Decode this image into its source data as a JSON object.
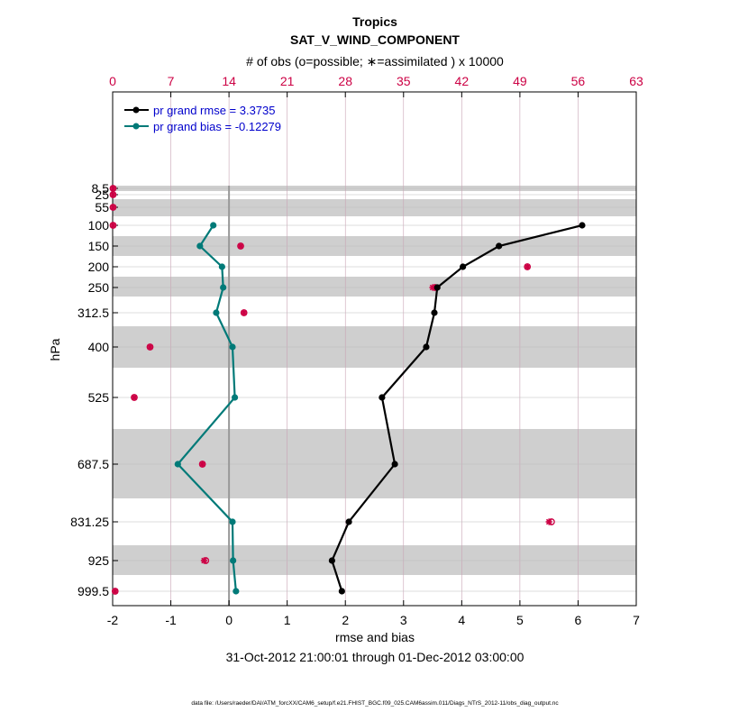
{
  "chart_data": {
    "type": "line",
    "title": "Tropics",
    "subtitle": "SAT_V_WIND_COMPONENT",
    "top_axis_label": "# of obs (o=possible; ∗=assimilated ) x 10000",
    "top_axis_ticks": [
      "0",
      "7",
      "14",
      "21",
      "28",
      "35",
      "42",
      "49",
      "56",
      "63"
    ],
    "top_axis_range": [
      0,
      63
    ],
    "xlabel": "rmse and bias",
    "ylabel": "hPa",
    "xlim": [
      -2,
      7
    ],
    "x_ticks": [
      "-2",
      "-1",
      "0",
      "1",
      "2",
      "3",
      "4",
      "5",
      "6",
      "7"
    ],
    "y_ticks": [
      "8.5",
      "25",
      "55",
      "100",
      "150",
      "200",
      "250",
      "312.5",
      "400",
      "525",
      "687.5",
      "831.25",
      "925",
      "999.5"
    ],
    "levels": [
      8.5,
      25,
      55,
      100,
      150,
      200,
      250,
      312.5,
      400,
      525,
      687.5,
      831.25,
      925,
      999.5
    ],
    "time_range": "31-Oct-2012 21:00:01 through 01-Dec-2012 03:00:00",
    "footnote": "data file: /Users/raeder/DAI/ATM_forcXX/CAM6_setup/f.e21.FHIST_BGC.f09_025.CAM6assim.011/Diags_NTrS_2012-11/obs_diag_output.nc",
    "series": [
      {
        "name": "rmse",
        "legend": "pr grand rmse = 3.3735",
        "color": "#000000",
        "levels": [
          100,
          150,
          200,
          250,
          312.5,
          400,
          525,
          687.5,
          831.25,
          925,
          999.5
        ],
        "values": [
          6.07,
          4.64,
          4.02,
          3.58,
          3.53,
          3.39,
          2.63,
          2.85,
          2.06,
          1.77,
          1.94
        ]
      },
      {
        "name": "bias",
        "legend": "pr grand bias = -0.12279",
        "color": "#007a78",
        "levels": [
          100,
          150,
          200,
          250,
          312.5,
          400,
          525,
          687.5,
          831.25,
          925,
          999.5
        ],
        "values": [
          -0.27,
          -0.5,
          -0.12,
          -0.1,
          -0.22,
          0.06,
          0.1,
          -0.88,
          0.06,
          0.07,
          0.12
        ]
      }
    ],
    "obs_counts": {
      "color": "#cc0044",
      "levels": [
        8.5,
        25,
        55,
        100,
        150,
        200,
        250,
        312.5,
        400,
        525,
        687.5,
        831.25,
        925,
        999.5
      ],
      "possible": [
        0.05,
        0.05,
        0.05,
        0.05,
        15.4,
        49.9,
        38.8,
        15.8,
        4.5,
        2.6,
        10.8,
        52.8,
        11.2,
        0.3
      ],
      "assimilated": [
        0.05,
        0.05,
        0.05,
        0.05,
        15.4,
        49.9,
        38.5,
        15.8,
        4.5,
        2.6,
        10.8,
        52.5,
        11.0,
        0.3
      ]
    }
  }
}
